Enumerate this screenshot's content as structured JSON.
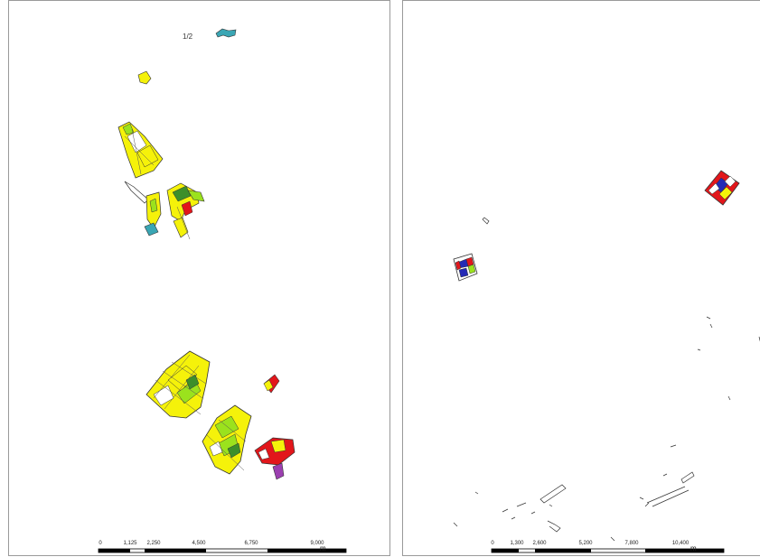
{
  "maps": [
    {
      "id": "left",
      "scale_bar": {
        "ticks": [
          "0",
          "1,125",
          "2,250",
          "4,500",
          "6,750",
          "9,000"
        ],
        "unit": "m"
      }
    },
    {
      "id": "right",
      "scale_bar": {
        "ticks": [
          "0",
          "1,300",
          "2,600",
          "5,200",
          "7,800",
          "10,400"
        ],
        "unit": "m"
      }
    }
  ],
  "colors": {
    "yellow": "#f5f20a",
    "light_green": "#9be21d",
    "dark_green": "#3c8f2a",
    "red": "#e2161b",
    "blue": "#242ab5",
    "cyan": "#3aa6b4",
    "purple": "#9b3fb0",
    "outline": "#333333"
  }
}
